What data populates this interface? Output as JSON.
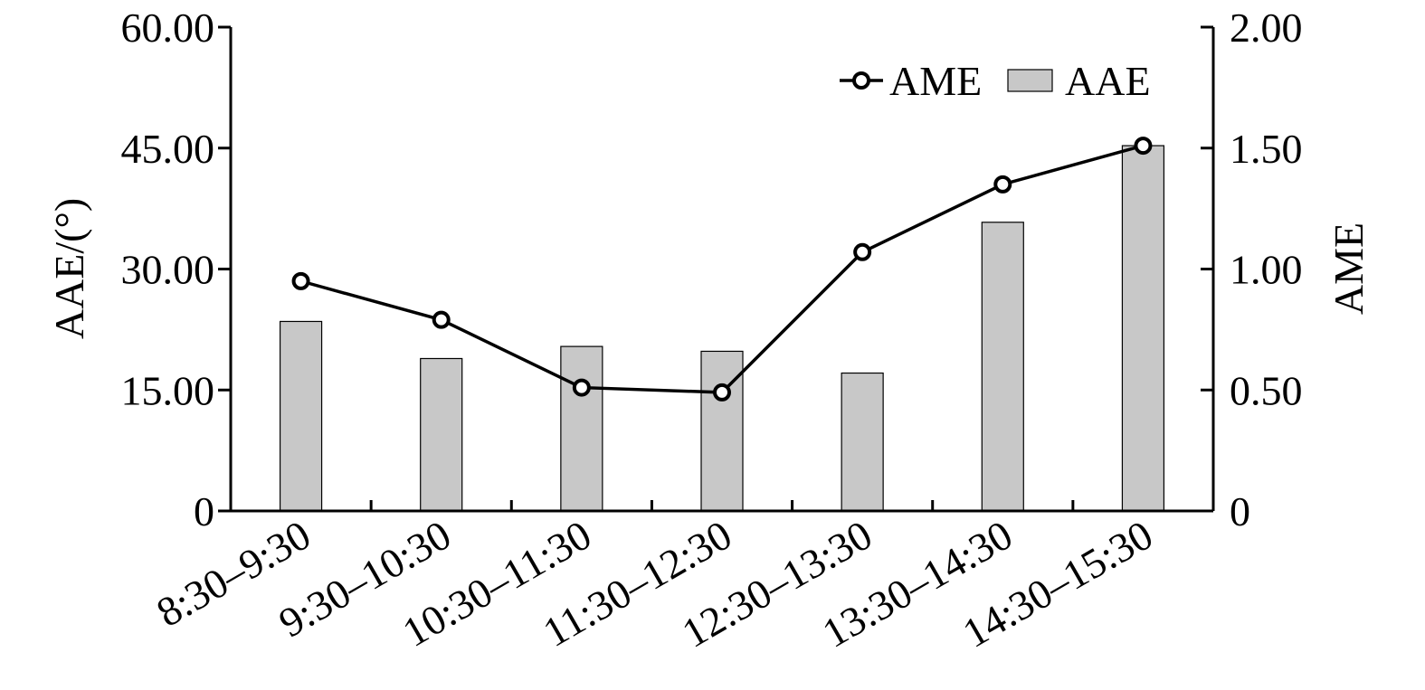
{
  "chart_data": {
    "type": "bar",
    "categories": [
      "8:30–9:30",
      "9:30–10:30",
      "10:30–11:30",
      "11:30–12:30",
      "12:30–13:30",
      "13:30–14:30",
      "14:30–15:30"
    ],
    "series": [
      {
        "name": "AAE",
        "type": "bar",
        "axis": "left",
        "values": [
          23.5,
          18.9,
          20.4,
          19.8,
          17.1,
          35.8,
          45.3
        ]
      },
      {
        "name": "AME",
        "type": "line",
        "axis": "right",
        "values": [
          0.95,
          0.79,
          0.51,
          0.49,
          1.07,
          1.35,
          1.51
        ]
      }
    ],
    "ylabel": "AAE/(°)",
    "ylabel_right": "AME",
    "ylim": [
      0,
      60
    ],
    "ylim_right": [
      0,
      2
    ],
    "yticks": [
      "0",
      "15.00",
      "30.00",
      "45.00",
      "60.00"
    ],
    "yticks_right": [
      "0",
      "0.50",
      "1.00",
      "1.50",
      "2.00"
    ],
    "legend": [
      "AME",
      "AAE"
    ],
    "legend_position": "top-right",
    "grid": false,
    "colors": {
      "bar_fill": "#c8c8c8",
      "line": "#000000",
      "marker_fill": "#ffffff"
    }
  }
}
